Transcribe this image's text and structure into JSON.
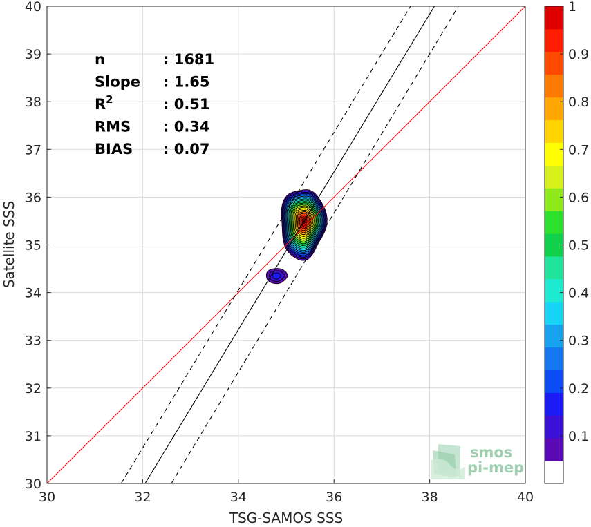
{
  "chart_data": {
    "type": "heatmap",
    "subtype": "density-contour-scatter",
    "xlabel": "TSG-SAMOS SSS",
    "ylabel": "Satellite SSS",
    "xlim": [
      30,
      40
    ],
    "ylim": [
      30,
      40
    ],
    "xticks": [
      "30",
      "32",
      "34",
      "36",
      "38",
      "40"
    ],
    "yticks": [
      "30",
      "31",
      "32",
      "33",
      "34",
      "35",
      "36",
      "37",
      "38",
      "39",
      "40"
    ],
    "grid": true,
    "stats": [
      {
        "label": "n",
        "value": ": 1681"
      },
      {
        "label": "Slope",
        "value": ": 1.65"
      },
      {
        "label": "R",
        "sup": "2",
        "value": ": 0.51"
      },
      {
        "label": "RMS",
        "value": ": 0.34"
      },
      {
        "label": "BIAS",
        "value": ": 0.07"
      }
    ],
    "lines": [
      {
        "kind": "identity",
        "color": "#ff0000",
        "points": [
          [
            30,
            30
          ],
          [
            40,
            40
          ]
        ]
      },
      {
        "kind": "regression",
        "color": "#000000",
        "style": "solid",
        "points": [
          [
            32.05,
            30
          ],
          [
            38.1,
            40
          ]
        ]
      },
      {
        "kind": "regression-upper",
        "color": "#000000",
        "style": "dashed",
        "points": [
          [
            31.55,
            30
          ],
          [
            37.6,
            40
          ]
        ]
      },
      {
        "kind": "regression-lower",
        "color": "#000000",
        "style": "dashed",
        "points": [
          [
            32.6,
            30
          ],
          [
            38.6,
            40
          ]
        ]
      }
    ],
    "density_peaks": [
      {
        "x": 35.35,
        "y": 35.45,
        "max": 1.0
      },
      {
        "x": 34.8,
        "y": 34.35,
        "max": 0.15
      }
    ],
    "colorbar": {
      "range": [
        0,
        1
      ],
      "ticks": [
        "0.1",
        "0.2",
        "0.3",
        "0.4",
        "0.5",
        "0.6",
        "0.7",
        "0.8",
        "0.9",
        "1"
      ],
      "levels": [
        "#ffffff",
        "#5b0ab5",
        "#3a10d6",
        "#1a1af5",
        "#0a4cf5",
        "#1577f0",
        "#17a2f0",
        "#16d4f5",
        "#1dead0",
        "#20e49b",
        "#10d04c",
        "#2ee02e",
        "#8fe81a",
        "#d6f21a",
        "#ffff00",
        "#ffd400",
        "#ffa600",
        "#ff7a00",
        "#ff4a00",
        "#ff1e00",
        "#e00000",
        "#8b0000"
      ]
    }
  },
  "watermark": {
    "line1": "smos",
    "line2": "pi-mep"
  }
}
